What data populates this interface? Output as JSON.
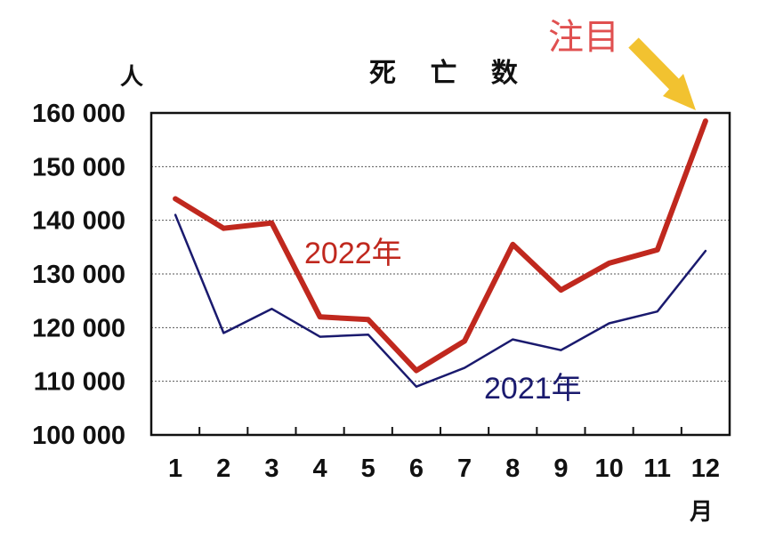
{
  "chart_data": {
    "type": "line",
    "title": "死 亡 数",
    "ylabel": "人",
    "xlabel": "月",
    "categories": [
      "1",
      "2",
      "3",
      "4",
      "5",
      "6",
      "7",
      "8",
      "9",
      "10",
      "11",
      "12"
    ],
    "ylim": [
      100000,
      160000
    ],
    "yticks": [
      100000,
      110000,
      120000,
      130000,
      140000,
      150000,
      160000
    ],
    "ytick_labels": [
      "100 000",
      "110 000",
      "120 000",
      "130 000",
      "140 000",
      "150 000",
      "160 000"
    ],
    "grid": true,
    "series": [
      {
        "name": "2022年",
        "color": "#c0281e",
        "values": [
          144000,
          138500,
          139500,
          122000,
          121500,
          112000,
          117500,
          135500,
          127000,
          132000,
          134500,
          158500
        ]
      },
      {
        "name": "2021年",
        "color": "#1a1a6e",
        "values": [
          141000,
          119000,
          123500,
          118300,
          118700,
          109000,
          112500,
          117800,
          115800,
          120800,
          123000,
          134300
        ]
      }
    ],
    "annotation": {
      "text": "注目",
      "color": "#e05050",
      "arrow_color": "#f2c230"
    }
  }
}
